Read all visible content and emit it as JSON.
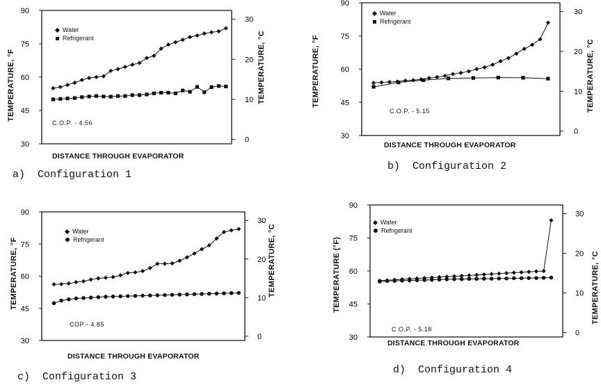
{
  "chart_data": [
    {
      "type": "line",
      "caption": "a)  Configuration 1",
      "xlabel": "DISTANCE THROUGH EVAPORATOR",
      "ylabel_left": "TEMPERATURE, °F",
      "ylabel_right": "TEMPERATURE, °C",
      "ylim_left": [
        30,
        90
      ],
      "yticks_left": [
        "90",
        "75",
        "60",
        "45",
        "30"
      ],
      "ylim_right": [
        -1.1,
        32.2
      ],
      "yticks_right": [
        "30",
        "20",
        "10",
        "0"
      ],
      "annotation": "C.O.P. - 4.56",
      "legend": [
        "Water",
        "Refrigerant"
      ],
      "series": [
        {
          "name": "Water",
          "marker": "diamond",
          "values": [
            55,
            55.6,
            56.5,
            57.5,
            58.7,
            59.6,
            60,
            60.4,
            62.8,
            63.6,
            64.6,
            65.6,
            66.4,
            68.6,
            69.6,
            72.8,
            74.6,
            75.7,
            76.8,
            78,
            78.7,
            79.6,
            80.2,
            80.6,
            82
          ]
        },
        {
          "name": "Refrigerant",
          "marker": "square",
          "values": [
            50,
            50.2,
            50.4,
            50.6,
            51,
            51.3,
            51.5,
            51.3,
            51.2,
            51.5,
            51.5,
            51.9,
            51.9,
            52.2,
            52.7,
            53,
            53,
            52.7,
            54,
            53.4,
            55.6,
            53.2,
            55.5,
            56,
            55.8
          ]
        }
      ]
    },
    {
      "type": "line",
      "caption": "b)  Configuration 2",
      "xlabel": "DISTANCE THROUGH EVAPORATOR",
      "ylabel_left": "TEMPERATURE, °F",
      "ylabel_right": "TEMPERATURE, °C",
      "ylim_left": [
        30,
        90
      ],
      "yticks_left": [
        "90",
        "75",
        "60",
        "45",
        "30"
      ],
      "ylim_right": [
        -1.1,
        32.2
      ],
      "yticks_right": [
        "30",
        "20",
        "10",
        "0"
      ],
      "annotation": "C.O.P. - 5.15",
      "legend": [
        "Water",
        "Refrigerant"
      ],
      "series": [
        {
          "name": "Water",
          "marker": "diamond",
          "values": [
            53.8,
            54,
            54.2,
            54.4,
            54.8,
            55,
            55.4,
            56,
            56.4,
            57,
            57.8,
            58.3,
            59,
            60,
            60.8,
            62,
            63.6,
            65,
            67,
            69.2,
            71,
            73.5,
            81
          ]
        },
        {
          "name": "Refrigerant",
          "marker": "square",
          "values": [
            52,
            54,
            55,
            55.8,
            56,
            56.2,
            56.1,
            55.7
          ]
        }
      ]
    },
    {
      "type": "line",
      "caption": "c)  Configuration 3",
      "xlabel": "DISTANCE THROUGH EVAPORATOR",
      "ylabel_left": "TEMPERATURE, °F",
      "ylabel_right": "TEMPERATURE, °C",
      "ylim_left": [
        30,
        90
      ],
      "yticks_left": [
        "90",
        "75",
        "60",
        "45",
        "30"
      ],
      "ylim_right": [
        -1.1,
        32.2
      ],
      "yticks_right": [
        "30",
        "20",
        "10",
        "0"
      ],
      "annotation": "COP - 4.85",
      "legend": [
        "Water",
        "Refrigerant"
      ],
      "series": [
        {
          "name": "Water",
          "marker": "diamond",
          "values": [
            56.2,
            56.3,
            56.6,
            57.2,
            57.6,
            58.4,
            59,
            59.3,
            59.6,
            60.4,
            61.5,
            61.8,
            62.4,
            63.8,
            65.8,
            65.8,
            66,
            67.2,
            68.8,
            70.6,
            72.6,
            74.4,
            77.6,
            80.6,
            81.4,
            82
          ]
        },
        {
          "name": "Refrigerant",
          "marker": "circle",
          "values": [
            47.4,
            48.6,
            49.2,
            49.6,
            49.8,
            50,
            50.2,
            50.4,
            50.5,
            50.6,
            50.7,
            50.8,
            50.9,
            51,
            51.1,
            51.2,
            51.3,
            51.4,
            51.5,
            51.6,
            51.7,
            51.8,
            51.9,
            52,
            52.1,
            52.2
          ]
        }
      ]
    },
    {
      "type": "line",
      "caption": "d)  Configuration 4",
      "xlabel": "DISTANCE THROUGH EVAPORATOR",
      "ylabel_left": "TEMPERATURE (°F)",
      "ylabel_right": "TEMPERATURE, °C",
      "ylim_left": [
        30,
        90
      ],
      "yticks_left": [
        "90",
        "75",
        "60",
        "45",
        "30"
      ],
      "ylim_right": [
        -1.1,
        32.2
      ],
      "yticks_right": [
        "30",
        "20",
        "10",
        "0"
      ],
      "annotation": "C O.P. - 5.18",
      "legend": [
        "Water",
        "Refrigerant"
      ],
      "series": [
        {
          "name": "Water",
          "marker": "diamond",
          "values": [
            55.6,
            55.8,
            56,
            56.2,
            56.4,
            56.6,
            56.8,
            57,
            57.2,
            57.4,
            57.6,
            57.8,
            58,
            58.2,
            58.4,
            58.6,
            58.8,
            59,
            59.2,
            59.4,
            59.6,
            59.8,
            60,
            83
          ]
        },
        {
          "name": "Refrigerant",
          "marker": "circle",
          "values": [
            55.2,
            55.4,
            55.5,
            55.6,
            55.7,
            55.8,
            55.9,
            56,
            56.1,
            56.2,
            56.3,
            56.3,
            56.4,
            56.4,
            56.5,
            56.5,
            56.6,
            56.6,
            56.7,
            56.7,
            56.8,
            56.8,
            56.9,
            57
          ]
        }
      ]
    }
  ]
}
